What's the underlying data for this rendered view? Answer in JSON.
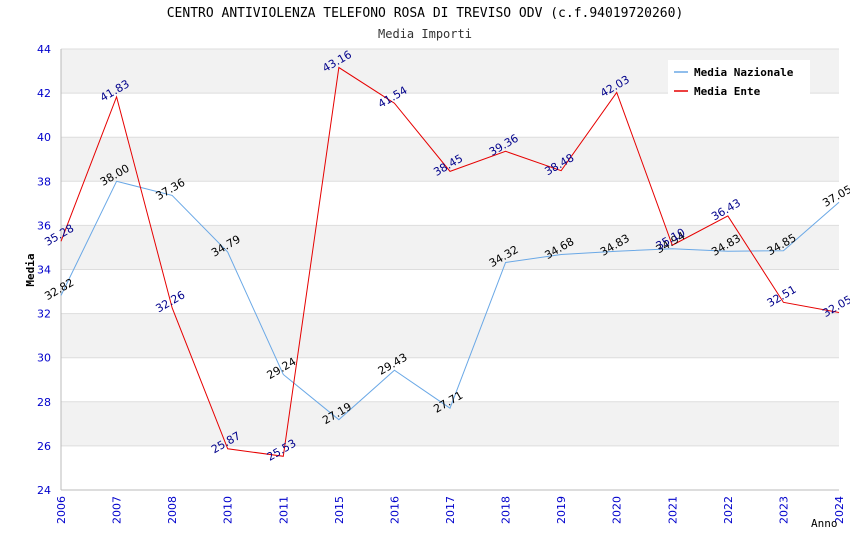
{
  "chart_data": {
    "type": "line",
    "title": "CENTRO ANTIVIOLENZA TELEFONO ROSA DI TREVISO ODV (c.f.94019720260)",
    "subtitle": "Media Importi",
    "xlabel": "Anno",
    "ylabel": "Media",
    "ylim": [
      24,
      44
    ],
    "yticks": [
      "24",
      "26",
      "28",
      "30",
      "32",
      "34",
      "36",
      "38",
      "40",
      "42",
      "44"
    ],
    "categories": [
      "2006",
      "2007",
      "2008",
      "2010",
      "2011",
      "2015",
      "2016",
      "2017",
      "2018",
      "2019",
      "2020",
      "2021",
      "2022",
      "2023",
      "2024"
    ],
    "legend_position": "top-right",
    "grid": true,
    "series": [
      {
        "name": "Media Nazionale",
        "color": "#6aa8e6",
        "label_color": "#000000",
        "values": [
          32.82,
          38.0,
          37.36,
          34.79,
          29.24,
          27.19,
          29.43,
          27.71,
          34.32,
          34.68,
          34.83,
          34.94,
          34.83,
          34.85,
          37.05
        ],
        "labels": [
          "32.82",
          "38.00",
          "37.36",
          "34.79",
          "29.24",
          "27.19",
          "29.43",
          "27.71",
          "34.32",
          "34.68",
          "34.83",
          "34.94",
          "34.83",
          "34.85",
          "37.05"
        ]
      },
      {
        "name": "Media Ente",
        "color": "#e60000",
        "label_color": "#00008b",
        "values": [
          35.28,
          41.83,
          32.26,
          25.87,
          25.53,
          43.16,
          41.54,
          38.45,
          39.36,
          38.48,
          42.03,
          35.1,
          36.43,
          32.51,
          32.05
        ],
        "labels": [
          "35.28",
          "41.83",
          "32.26",
          "25.87",
          "25.53",
          "43.16",
          "41.54",
          "38.45",
          "39.36",
          "38.48",
          "42.03",
          "35.10",
          "36.43",
          "32.51",
          "32.05"
        ]
      }
    ]
  }
}
